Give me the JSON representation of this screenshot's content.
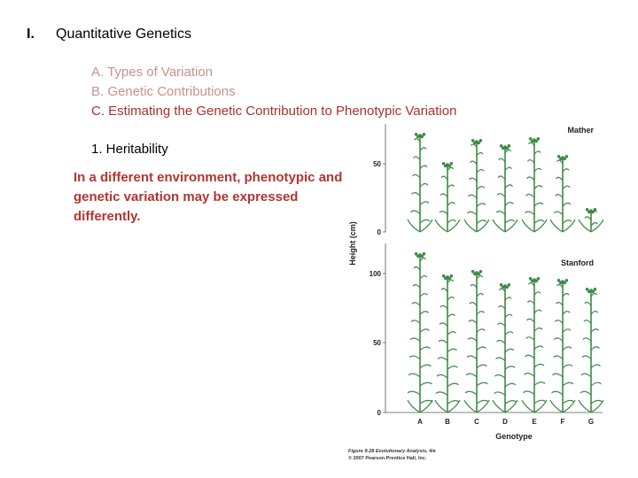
{
  "slide": {
    "roman": "I.",
    "title": "Quantitative Genetics",
    "outline": [
      "A.  Types of Variation",
      "B. Genetic Contributions",
      "C. Estimating the Genetic Contribution to Phenotypic Variation"
    ],
    "subheading": "1. Heritability",
    "note": "In a different environment, phenotypic and genetic variation may be expressed differently."
  },
  "figure": {
    "y_axis_label": "Height (cm)",
    "x_axis_label": "Genotype",
    "panels": [
      {
        "name": "Mather",
        "ticks": [
          "0",
          "50"
        ]
      },
      {
        "name": "Stanford",
        "ticks": [
          "0",
          "50",
          "100"
        ]
      }
    ],
    "genotypes": [
      "A",
      "B",
      "C",
      "D",
      "E",
      "F",
      "G"
    ],
    "caption_line1": "Figure 9-28  Evolutionary Analysis, 4/e",
    "caption_line2": "© 2007 Pearson Prentice Hall, Inc.",
    "plant_color": "#3d8b45"
  }
}
